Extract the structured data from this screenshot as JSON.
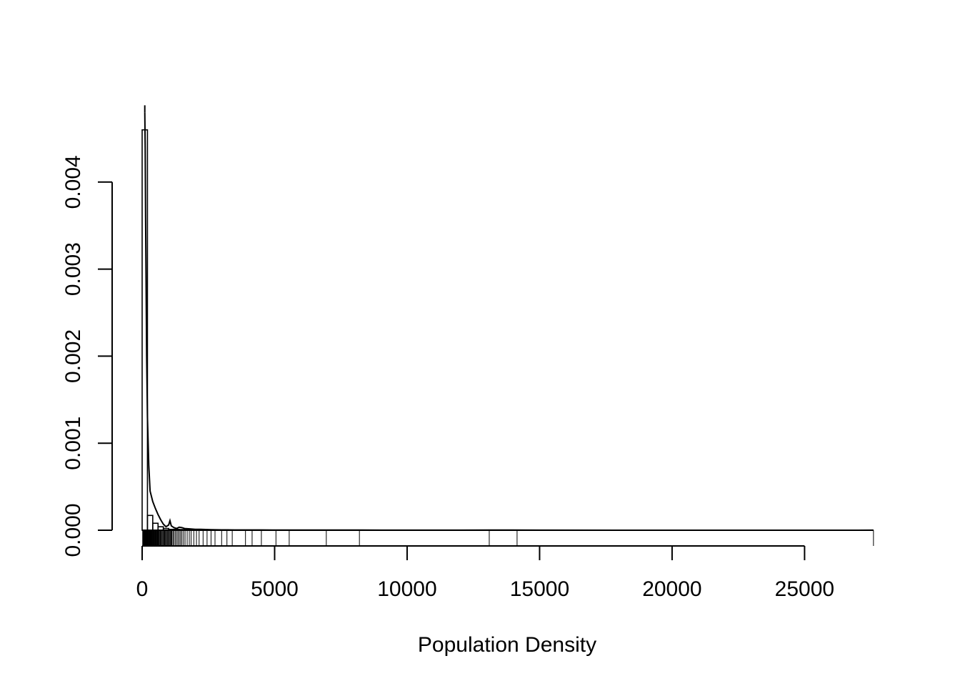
{
  "chart_data": {
    "type": "histogram",
    "title": "",
    "xlabel": "Population Density",
    "ylabel": "",
    "xlim": [
      0,
      27600
    ],
    "ylim": [
      0,
      0.0047
    ],
    "x_ticks": [
      0,
      5000,
      10000,
      15000,
      20000,
      25000
    ],
    "x_tick_labels": [
      "0",
      "5000",
      "10000",
      "15000",
      "20000",
      "25000"
    ],
    "y_ticks": [
      0.0,
      0.001,
      0.002,
      0.003,
      0.004
    ],
    "y_tick_labels": [
      "0.000",
      "0.001",
      "0.002",
      "0.003",
      "0.004"
    ],
    "grid": false,
    "bin_width": 200,
    "histogram_bins": [
      {
        "x0": 0,
        "x1": 200,
        "density": 0.0046
      },
      {
        "x0": 200,
        "x1": 400,
        "density": 0.00017
      },
      {
        "x0": 400,
        "x1": 600,
        "density": 8e-05
      },
      {
        "x0": 600,
        "x1": 800,
        "density": 4e-05
      },
      {
        "x0": 800,
        "x1": 1000,
        "density": 2e-05
      },
      {
        "x0": 1000,
        "x1": 1200,
        "density": 1e-05
      },
      {
        "x0": 1200,
        "x1": 1400,
        "density": 1e-05
      },
      {
        "x0": 1400,
        "x1": 1600,
        "density": 8e-06
      },
      {
        "x0": 1600,
        "x1": 1800,
        "density": 5e-06
      },
      {
        "x0": 1800,
        "x1": 2000,
        "density": 4e-06
      }
    ],
    "density_curve": {
      "x": [
        100,
        115,
        130,
        150,
        170,
        200,
        250,
        300,
        400,
        500,
        600,
        700,
        800,
        900,
        1000,
        1050,
        1100,
        1200,
        1300,
        1400,
        1500,
        1600,
        1800,
        2000,
        2200,
        2400,
        2600,
        2800,
        3000,
        3200,
        3500,
        4000,
        4500,
        5000,
        5500,
        6000,
        7000,
        8000,
        9000,
        10000,
        12000,
        13100,
        14000,
        15000,
        18000,
        21000,
        24000,
        27000,
        27600
      ],
      "y": [
        0.0048,
        0.0044,
        0.0036,
        0.0028,
        0.002,
        0.0013,
        0.00075,
        0.00045,
        0.00033,
        0.00025,
        0.00018,
        0.00012,
        7e-05,
        4e-05,
        6e-05,
        0.00011,
        5e-05,
        3e-05,
        2e-05,
        3.5e-05,
        3e-05,
        2e-05,
        1.5e-05,
        1e-05,
        1e-05,
        8e-06,
        6e-06,
        5e-06,
        4e-06,
        4e-06,
        3e-06,
        3e-06,
        3e-06,
        2e-06,
        2e-06,
        2e-06,
        2e-06,
        2e-06,
        1e-06,
        1e-06,
        1e-06,
        2e-06,
        2e-06,
        1e-06,
        5e-07,
        5e-07,
        5e-07,
        5e-07,
        1e-06
      ]
    },
    "rug": [
      20,
      40,
      55,
      70,
      85,
      95,
      110,
      125,
      140,
      155,
      170,
      185,
      200,
      215,
      235,
      250,
      270,
      290,
      310,
      330,
      350,
      370,
      390,
      410,
      430,
      450,
      470,
      490,
      510,
      530,
      550,
      570,
      590,
      610,
      630,
      650,
      680,
      700,
      730,
      760,
      790,
      820,
      850,
      880,
      910,
      940,
      970,
      1000,
      1030,
      1060,
      1090,
      1120,
      1160,
      1200,
      1250,
      1300,
      1350,
      1400,
      1450,
      1500,
      1560,
      1620,
      1700,
      1780,
      1850,
      1950,
      2050,
      2150,
      2300,
      2450,
      2600,
      2750,
      3000,
      3200,
      3400,
      3900,
      4150,
      4500,
      5050,
      5550,
      6950,
      8200,
      13100,
      14150,
      27600
    ]
  }
}
